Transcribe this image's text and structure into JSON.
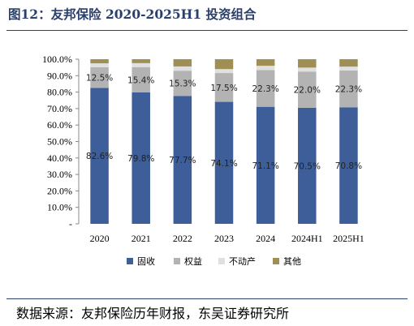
{
  "header": {
    "title": "图12：友邦保险 2020-2025H1 投资组合"
  },
  "footer": {
    "source": "数据来源：友邦保险历年财报，东吴证券研究所"
  },
  "colors": {
    "固收": "#3d5e99",
    "权益": "#b3b3b3",
    "不动产": "#e0e0e0",
    "其他": "#a08f54"
  },
  "chart_data": {
    "type": "bar",
    "stacked": true,
    "categories": [
      "2020",
      "2021",
      "2022",
      "2023",
      "2024",
      "2024H1",
      "2025H1"
    ],
    "series": [
      {
        "name": "固收",
        "values": [
          82.6,
          79.8,
          77.7,
          74.1,
          71.1,
          70.5,
          70.8
        ]
      },
      {
        "name": "权益",
        "values": [
          12.5,
          15.4,
          15.3,
          17.5,
          22.3,
          22.0,
          22.3
        ]
      },
      {
        "name": "不动产",
        "values": [
          2.4,
          2.4,
          2.6,
          2.4,
          2.6,
          2.4,
          2.4
        ]
      },
      {
        "name": "其他",
        "values": [
          2.5,
          2.4,
          4.4,
          6.0,
          4.0,
          5.1,
          4.5
        ]
      }
    ],
    "data_labels": [
      [
        "82.6%",
        "79.8%",
        "77.7%",
        "74.1%",
        "71.1%",
        "70.5%",
        "70.8%"
      ],
      [
        "12.5%",
        "15.4%",
        "15.3%",
        "17.5%",
        "22.3%",
        "22.0%",
        "22.3%"
      ]
    ],
    "y_ticks": [
      "-",
      "10.0%",
      "20.0%",
      "30.0%",
      "40.0%",
      "50.0%",
      "60.0%",
      "70.0%",
      "80.0%",
      "90.0%",
      "100.0%"
    ],
    "ylim": [
      0,
      100
    ],
    "legend_position": "bottom",
    "grid": false
  }
}
